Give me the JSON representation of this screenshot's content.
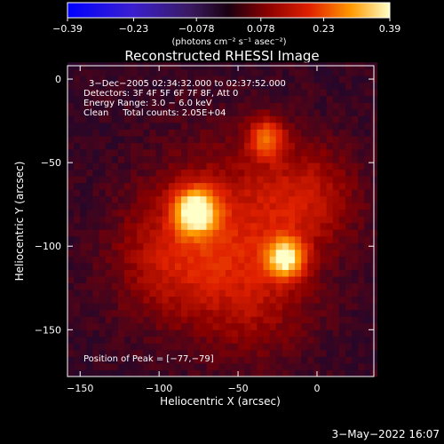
{
  "chart_data": {
    "type": "heatmap",
    "title": "Reconstructed RHESSI Image",
    "xlabel": "Heliocentric X (arcsec)",
    "ylabel": "Heliocentric Y (arcsec)",
    "xlim": [
      -158,
      36
    ],
    "ylim": [
      -178,
      8
    ],
    "x_ticks": [
      -150,
      -100,
      -50,
      0
    ],
    "x_tick_labels": [
      "−150",
      "−100",
      "−50",
      "0"
    ],
    "y_ticks": [
      0,
      -50,
      -100,
      -150
    ],
    "y_tick_labels": [
      "0",
      "−50",
      "−100",
      "−150"
    ],
    "colorbar": {
      "min": -0.39,
      "max": 0.39,
      "ticks": [
        -0.39,
        -0.23,
        -0.078,
        0.078,
        0.23,
        0.39
      ],
      "tick_labels": [
        "−0.39",
        "−0.23",
        "−0.078",
        "0.078",
        "0.23",
        "0.39"
      ],
      "units": "(photons cm⁻² s⁻¹ asec⁻²)"
    },
    "annotations": [
      "3−Dec−2005 02:34:32.000 to 02:37:52.000",
      "Detectors: 3F 4F 5F 6F 7F 8F, Att 0",
      "Energy Range: 3.0 − 6.0 keV",
      "Clean     Total counts: 2.05E+04"
    ],
    "peak_label": "Position of Peak = [−77,−79]",
    "peak": [
      -77,
      -79
    ],
    "sources": [
      {
        "x": -77,
        "y": -79,
        "sigma": 9,
        "amp": 0.39
      },
      {
        "x": -20,
        "y": -107,
        "sigma": 8,
        "amp": 0.33
      },
      {
        "x": -32,
        "y": -35,
        "sigma": 8,
        "amp": 0.2
      },
      {
        "x": -55,
        "y": -90,
        "sigma": 35,
        "amp": 0.12
      },
      {
        "x": -5,
        "y": -70,
        "sigma": 22,
        "amp": 0.09
      },
      {
        "x": -95,
        "y": -110,
        "sigma": 25,
        "amp": 0.08
      },
      {
        "x": -40,
        "y": -135,
        "sigma": 25,
        "amp": 0.06
      }
    ],
    "grid": false
  },
  "footer": {
    "timestamp": "3−May−2022 16:07"
  }
}
